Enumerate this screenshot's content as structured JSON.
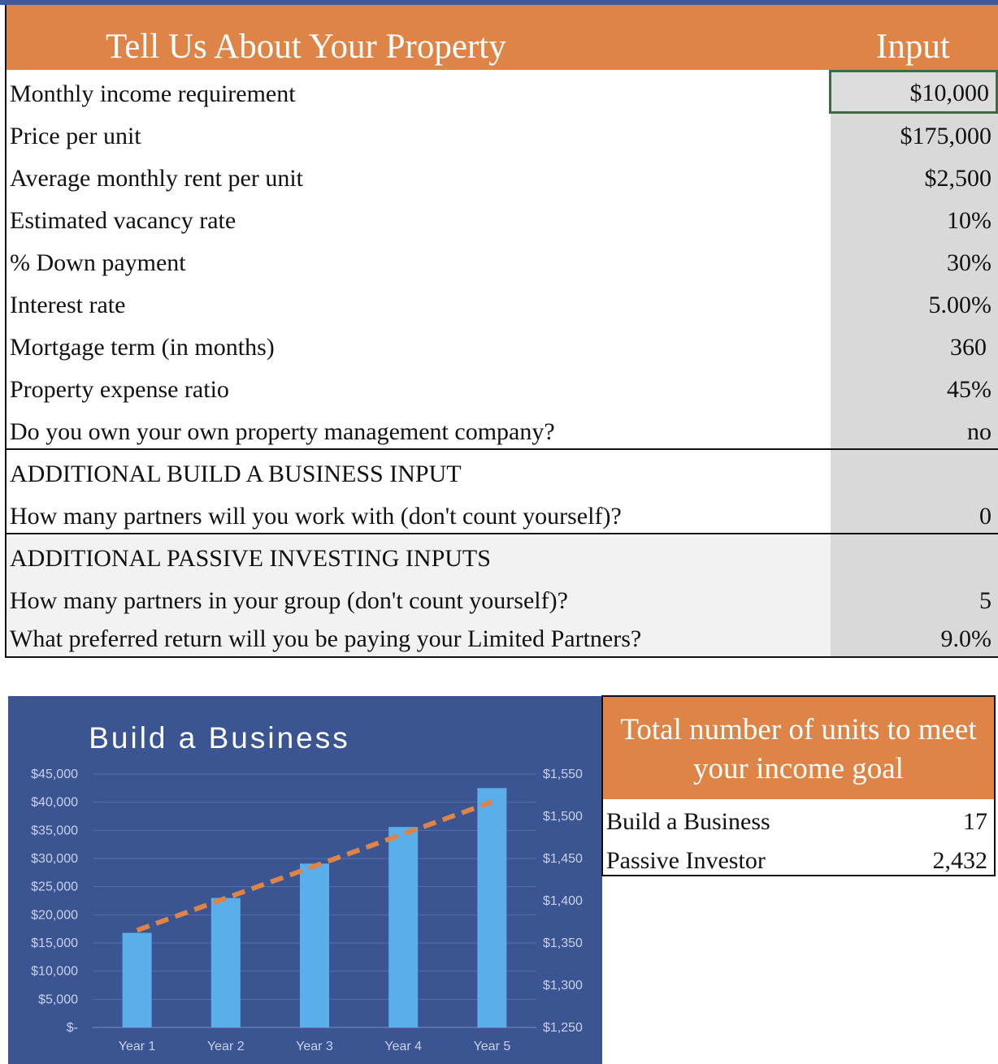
{
  "header": {
    "title": "Tell Us About Your Property",
    "input_label": "Input"
  },
  "rows": [
    {
      "label": "Monthly income requirement",
      "value": "$10,000"
    },
    {
      "label": "Price per unit",
      "value": "$175,000"
    },
    {
      "label": "Average monthly rent per unit",
      "value": "$2,500"
    },
    {
      "label": "Estimated vacancy rate",
      "value": "10%"
    },
    {
      "label": "% Down payment",
      "value": "30%"
    },
    {
      "label": "Interest rate",
      "value": "5.00%"
    },
    {
      "label": "Mortgage term (in months)",
      "value": "360"
    },
    {
      "label": "Property expense ratio",
      "value": "45%"
    },
    {
      "label": "Do you own your own property management company?",
      "value": "no"
    }
  ],
  "build_section": {
    "heading": "ADDITIONAL BUILD A BUSINESS INPUT",
    "rows": [
      {
        "label": "How many partners will you work with (don't count yourself)?",
        "value": "0"
      }
    ]
  },
  "passive_section": {
    "heading": "ADDITIONAL PASSIVE INVESTING INPUTS",
    "rows": [
      {
        "label": "How many partners in your group (don't count yourself)?",
        "value": "5"
      },
      {
        "label": "What preferred return will you be paying your Limited Partners?",
        "value": "9.0%"
      }
    ]
  },
  "summary": {
    "title_line1": "Total number of units to meet",
    "title_line2": "your income goal",
    "rows": [
      {
        "label": "Build a Business",
        "value": "17"
      },
      {
        "label": "Passive Investor",
        "value": "2,432"
      }
    ]
  },
  "chart_data": {
    "type": "bar",
    "title": "Build a Business",
    "categories": [
      "Year 1",
      "Year 2",
      "Year 3",
      "Year 4",
      "Year 5"
    ],
    "series": [
      {
        "values": [
          16800,
          23000,
          29100,
          35600,
          42500
        ],
        "axis": "left",
        "color": "#5aafea"
      },
      {
        "values": [
          1365,
          1403,
          1441,
          1479,
          1517
        ],
        "axis": "right",
        "type": "line",
        "style": "dashed",
        "color": "#dd8446"
      }
    ],
    "ylim": [
      0,
      45000
    ],
    "yticks": [
      0,
      5000,
      10000,
      15000,
      20000,
      25000,
      30000,
      35000,
      40000,
      45000
    ],
    "ytick_labels": [
      "$-",
      "$5,000",
      "$10,000",
      "$15,000",
      "$20,000",
      "$25,000",
      "$30,000",
      "$35,000",
      "$40,000",
      "$45,000"
    ],
    "y2lim": [
      1250,
      1550
    ],
    "y2ticks": [
      1250,
      1300,
      1350,
      1400,
      1450,
      1500,
      1550
    ],
    "y2tick_labels": [
      "$1,250",
      "$1,300",
      "$1,350",
      "$1,400",
      "$1,450",
      "$1,500",
      "$1,550"
    ],
    "grid": true,
    "background": "#3b5593"
  }
}
